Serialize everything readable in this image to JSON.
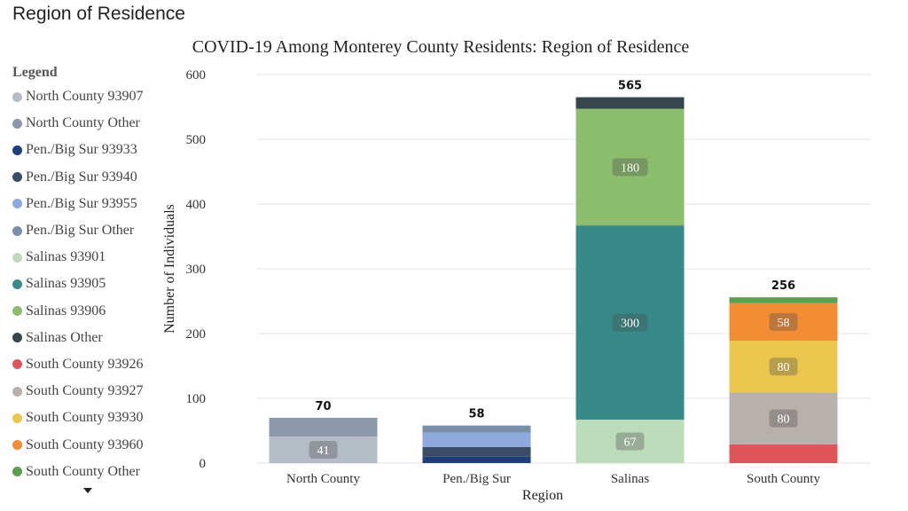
{
  "page": {
    "heading": "Region of Residence"
  },
  "legend": {
    "title": "Legend",
    "items": [
      {
        "label": "North County 93907",
        "color": "#b4bcc6"
      },
      {
        "label": "North County Other",
        "color": "#8a98aa"
      },
      {
        "label": "Pen./Big Sur 93933",
        "color": "#1e3f7a"
      },
      {
        "label": "Pen./Big Sur 93940",
        "color": "#3a4d66"
      },
      {
        "label": "Pen./Big Sur 93955",
        "color": "#8eaadc"
      },
      {
        "label": "Pen./Big Sur Other",
        "color": "#7a8faa"
      },
      {
        "label": "Salinas 93901",
        "color": "#bcdcba"
      },
      {
        "label": "Salinas 93905",
        "color": "#388a8a"
      },
      {
        "label": "Salinas 93906",
        "color": "#8cbd6e"
      },
      {
        "label": "Salinas Other",
        "color": "#33474c"
      },
      {
        "label": "South County 93926",
        "color": "#e05559"
      },
      {
        "label": "South County 93927",
        "color": "#b8b0ac"
      },
      {
        "label": "South County 93930",
        "color": "#ecc74e"
      },
      {
        "label": "South County 93960",
        "color": "#f28d36"
      },
      {
        "label": "South County Other",
        "color": "#58a04b"
      }
    ],
    "more_icon": "caret-down-icon"
  },
  "chart_data": {
    "type": "bar",
    "stacked": true,
    "title": "COVID-19 Among Monterey County Residents: Region of Residence",
    "xlabel": "Region",
    "ylabel": "Number of Individuals",
    "ylim": [
      0,
      600
    ],
    "yticks": [
      "0",
      "100",
      "200",
      "300",
      "400",
      "500",
      "600"
    ],
    "grid": true,
    "legend_position": "left",
    "categories": [
      "North County",
      "Pen./Big Sur",
      "Salinas",
      "South County"
    ],
    "totals": [
      "70",
      "58",
      "565",
      "256"
    ],
    "stacks": [
      {
        "category": "North County",
        "segments": [
          {
            "series": "North County 93907",
            "value": 41,
            "label": "41"
          },
          {
            "series": "North County Other",
            "value": 29,
            "label": ""
          }
        ]
      },
      {
        "category": "Pen./Big Sur",
        "segments": [
          {
            "series": "Pen./Big Sur 93933",
            "value": 10,
            "label": ""
          },
          {
            "series": "Pen./Big Sur 93940",
            "value": 15,
            "label": ""
          },
          {
            "series": "Pen./Big Sur 93955",
            "value": 22,
            "label": ""
          },
          {
            "series": "Pen./Big Sur Other",
            "value": 11,
            "label": ""
          }
        ]
      },
      {
        "category": "Salinas",
        "segments": [
          {
            "series": "Salinas 93901",
            "value": 67,
            "label": "67"
          },
          {
            "series": "Salinas 93905",
            "value": 300,
            "label": "300"
          },
          {
            "series": "Salinas 93906",
            "value": 180,
            "label": "180"
          },
          {
            "series": "Salinas Other",
            "value": 18,
            "label": ""
          }
        ]
      },
      {
        "category": "South County",
        "segments": [
          {
            "series": "South County 93926",
            "value": 29,
            "label": ""
          },
          {
            "series": "South County 93927",
            "value": 80,
            "label": "80"
          },
          {
            "series": "South County 93930",
            "value": 80,
            "label": "80"
          },
          {
            "series": "South County 93960",
            "value": 58,
            "label": "58"
          },
          {
            "series": "South County Other",
            "value": 9,
            "label": ""
          }
        ]
      }
    ]
  }
}
